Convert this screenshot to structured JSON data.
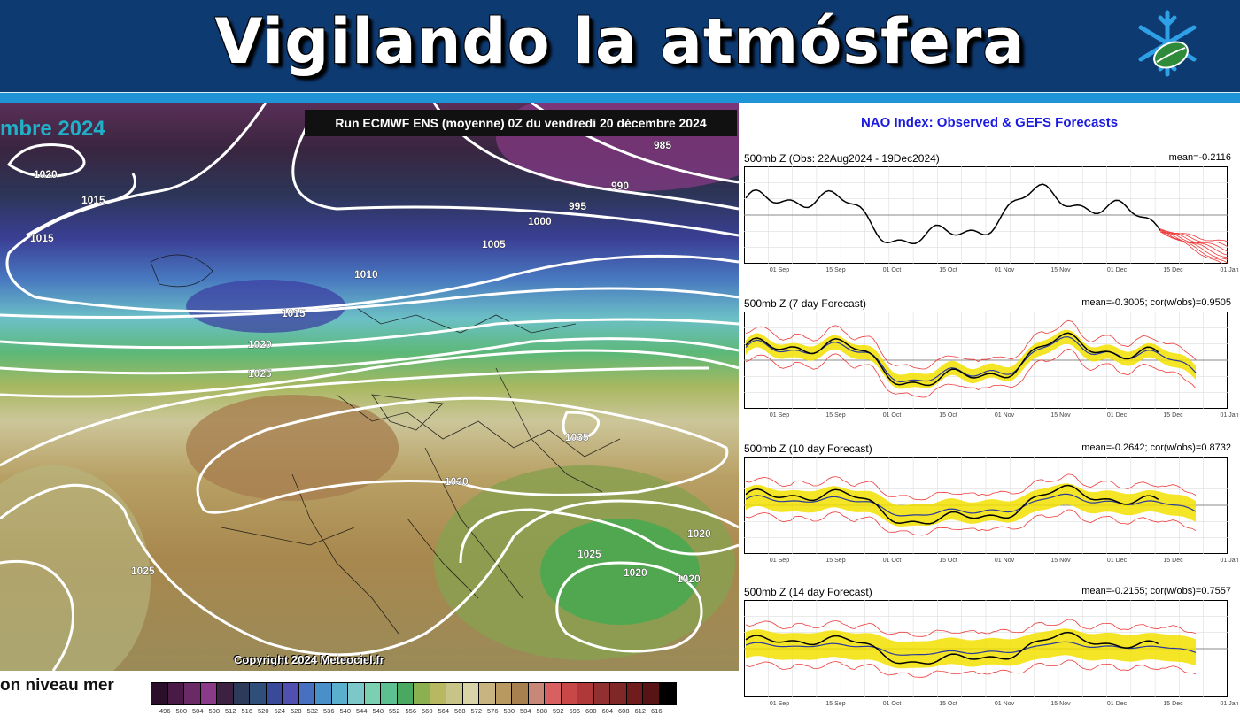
{
  "banner": {
    "title": "Vigilando la atmósfera",
    "logo_icon": "snowflake-leaf-logo-icon"
  },
  "map": {
    "run_label": "Run ECMWF ENS (moyenne) 0Z du vendredi 20 décembre 2024",
    "date_fragment": "mbre 2024",
    "copyright": "Copyright 2024 Meteociel.fr",
    "legend_title": "on niveau mer",
    "isobar_labels": [
      "985",
      "990",
      "995",
      "1000",
      "1005",
      "1010",
      "1015",
      "1020",
      "1025",
      "1030",
      "1035",
      "1020",
      "1015",
      "1015",
      "1025",
      "1025",
      "1020",
      "1020",
      "1020"
    ],
    "legend_colors": [
      "#2b0f2a",
      "#4a1a46",
      "#6a2a66",
      "#8a3a88",
      "#3c2240",
      "#2e3a5a",
      "#2f4f7a",
      "#3a4a9a",
      "#5050b0",
      "#4870c0",
      "#4a90c8",
      "#5ab0cc",
      "#7cc8c8",
      "#7ad0b0",
      "#5cc090",
      "#4aa860",
      "#8ab050",
      "#b8b860",
      "#c8c488",
      "#d8d4a8",
      "#c8b480",
      "#b89a60",
      "#a88050",
      "#c88878",
      "#d86060",
      "#c84848",
      "#b03838",
      "#903030",
      "#802828",
      "#701c1c",
      "#581414",
      "#000000"
    ],
    "legend_ticks": [
      "496",
      "500",
      "504",
      "508",
      "512",
      "516",
      "520",
      "524",
      "528",
      "532",
      "536",
      "540",
      "544",
      "548",
      "552",
      "556",
      "560",
      "564",
      "568",
      "572",
      "576",
      "580",
      "584",
      "588",
      "592",
      "596",
      "600",
      "604",
      "608",
      "612",
      "616"
    ]
  },
  "nao": {
    "title": "NAO Index: Observed & GEFS Forecasts",
    "x_ticks": [
      "01 Sep",
      "15 Sep",
      "01 Oct",
      "15 Oct",
      "01 Nov",
      "15 Nov",
      "01 Dec",
      "15 Dec",
      "01 Jan"
    ],
    "panels": [
      {
        "title": "500mb Z (Obs: 22Aug2024 - 19Dec2024)",
        "stat": "mean=-0.2116"
      },
      {
        "title": "500mb Z (7 day Forecast)",
        "stat": "mean=-0.3005; cor(w/obs)=0.9505"
      },
      {
        "title": "500mb Z (10 day Forecast)",
        "stat": "mean=-0.2642; cor(w/obs)=0.8732"
      },
      {
        "title": "500mb Z (14 day Forecast)",
        "stat": "mean=-0.2155; cor(w/obs)=0.7557"
      }
    ],
    "colors": {
      "observed": "#000000",
      "ensemble_mean": "#2a3a9a",
      "spread": "#f2e000",
      "members": "#ee3b3b"
    }
  }
}
